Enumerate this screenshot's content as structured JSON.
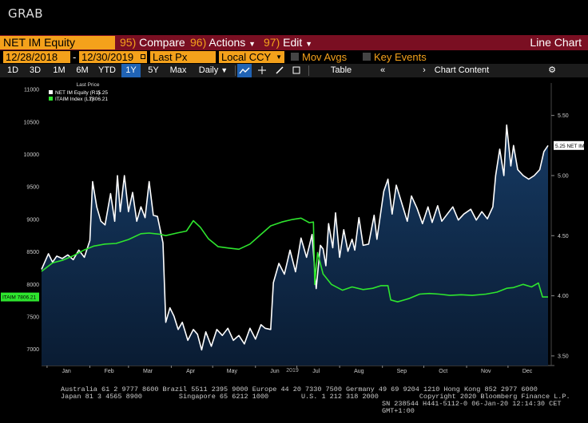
{
  "header": {
    "ticker": "GRAB",
    "security": "NET IM Equity",
    "menus": {
      "compare_num": "95)",
      "compare_label": "Compare",
      "actions_num": "96)",
      "actions_label": "Actions",
      "edit_num": "97)",
      "edit_label": "Edit"
    },
    "view_title": "Line Chart"
  },
  "controls": {
    "start_date": "12/28/2018",
    "end_date": "12/30/2019",
    "date_separator": "-",
    "price_field": "Last Px",
    "currency": "Local CCY",
    "mov_avgs": "Mov Avgs",
    "key_events": "Key Events"
  },
  "toolbar": {
    "ranges": [
      "1D",
      "3D",
      "1M",
      "6M",
      "YTD",
      "1Y",
      "5Y",
      "Max"
    ],
    "active_range": "1Y",
    "frequency": "Daily",
    "table_label": "Table",
    "chart_content_label": "Chart Content"
  },
  "legend": {
    "header": "Last Price",
    "items": [
      {
        "name": "NET IM Equity  (R1)",
        "value": "5.25",
        "color": "#ffffff"
      },
      {
        "name": "ITAIM Index  (L1)",
        "value": "7806.21",
        "color": "#2ee52e"
      }
    ]
  },
  "tags": {
    "right": "5.25 NET IM",
    "left": "ITAIM 7806.21"
  },
  "chart_data": {
    "type": "line",
    "xlabel": "2019",
    "x_ticks": [
      "Jan",
      "Feb",
      "Mar",
      "Apr",
      "May",
      "Jun",
      "Jul",
      "Aug",
      "Sep",
      "Oct",
      "Nov",
      "Dec"
    ],
    "left_axis": {
      "ticks": [
        7000,
        7500,
        8000,
        8500,
        9000,
        9500,
        10000,
        10500,
        11000
      ],
      "ylim": [
        6750,
        11100
      ]
    },
    "right_axis": {
      "ticks": [
        "3.50",
        "4.00",
        "4.50",
        "5.00",
        "5.50"
      ],
      "ylim": [
        3.42,
        5.77
      ]
    },
    "x_range": [
      "2018-12-28",
      "2019-12-30"
    ],
    "series": [
      {
        "name": "NET IM Equity",
        "axis": "right",
        "style": "area",
        "color": "#ffffff",
        "fill": "#0e2a4a",
        "points": [
          [
            "2018-12-28",
            4.22
          ],
          [
            "2019-01-02",
            4.35
          ],
          [
            "2019-01-05",
            4.28
          ],
          [
            "2019-01-08",
            4.33
          ],
          [
            "2019-01-12",
            4.31
          ],
          [
            "2019-01-16",
            4.34
          ],
          [
            "2019-01-20",
            4.3
          ],
          [
            "2019-01-24",
            4.38
          ],
          [
            "2019-01-28",
            4.32
          ],
          [
            "2019-02-01",
            4.46
          ],
          [
            "2019-02-03",
            4.95
          ],
          [
            "2019-02-06",
            4.74
          ],
          [
            "2019-02-09",
            4.62
          ],
          [
            "2019-02-12",
            4.59
          ],
          [
            "2019-02-16",
            4.85
          ],
          [
            "2019-02-19",
            4.62
          ],
          [
            "2019-02-21",
            5.0
          ],
          [
            "2019-02-23",
            4.7
          ],
          [
            "2019-02-26",
            5.0
          ],
          [
            "2019-03-01",
            4.7
          ],
          [
            "2019-03-04",
            4.86
          ],
          [
            "2019-03-07",
            4.62
          ],
          [
            "2019-03-10",
            4.74
          ],
          [
            "2019-03-13",
            4.65
          ],
          [
            "2019-03-16",
            4.95
          ],
          [
            "2019-03-19",
            4.67
          ],
          [
            "2019-03-22",
            4.66
          ],
          [
            "2019-03-26",
            4.44
          ],
          [
            "2019-03-28",
            3.78
          ],
          [
            "2019-03-31",
            3.9
          ],
          [
            "2019-04-03",
            3.83
          ],
          [
            "2019-04-06",
            3.72
          ],
          [
            "2019-04-09",
            3.78
          ],
          [
            "2019-04-13",
            3.63
          ],
          [
            "2019-04-17",
            3.72
          ],
          [
            "2019-04-20",
            3.68
          ],
          [
            "2019-04-23",
            3.55
          ],
          [
            "2019-04-26",
            3.7
          ],
          [
            "2019-04-30",
            3.58
          ],
          [
            "2019-05-04",
            3.72
          ],
          [
            "2019-05-08",
            3.67
          ],
          [
            "2019-05-12",
            3.73
          ],
          [
            "2019-05-16",
            3.63
          ],
          [
            "2019-05-20",
            3.67
          ],
          [
            "2019-05-24",
            3.6
          ],
          [
            "2019-05-28",
            3.73
          ],
          [
            "2019-06-01",
            3.64
          ],
          [
            "2019-06-05",
            3.76
          ],
          [
            "2019-06-08",
            3.73
          ],
          [
            "2019-06-12",
            3.72
          ],
          [
            "2019-06-14",
            4.11
          ],
          [
            "2019-06-18",
            4.27
          ],
          [
            "2019-06-22",
            4.18
          ],
          [
            "2019-06-26",
            4.38
          ],
          [
            "2019-06-30",
            4.2
          ],
          [
            "2019-07-04",
            4.48
          ],
          [
            "2019-07-08",
            4.32
          ],
          [
            "2019-07-12",
            4.51
          ],
          [
            "2019-07-15",
            4.06
          ],
          [
            "2019-07-18",
            4.42
          ],
          [
            "2019-07-20",
            4.39
          ],
          [
            "2019-07-22",
            4.25
          ],
          [
            "2019-07-24",
            4.6
          ],
          [
            "2019-07-27",
            4.4
          ],
          [
            "2019-07-29",
            4.69
          ],
          [
            "2019-08-01",
            4.32
          ],
          [
            "2019-08-04",
            4.55
          ],
          [
            "2019-08-07",
            4.37
          ],
          [
            "2019-08-10",
            4.47
          ],
          [
            "2019-08-12",
            4.38
          ],
          [
            "2019-08-15",
            4.65
          ],
          [
            "2019-08-18",
            4.42
          ],
          [
            "2019-08-22",
            4.43
          ],
          [
            "2019-08-26",
            4.67
          ],
          [
            "2019-08-28",
            4.47
          ],
          [
            "2019-09-02",
            4.87
          ],
          [
            "2019-09-05",
            4.97
          ],
          [
            "2019-09-08",
            4.68
          ],
          [
            "2019-09-11",
            4.92
          ],
          [
            "2019-09-15",
            4.77
          ],
          [
            "2019-09-19",
            4.62
          ],
          [
            "2019-09-22",
            4.83
          ],
          [
            "2019-09-26",
            4.73
          ],
          [
            "2019-09-30",
            4.6
          ],
          [
            "2019-10-04",
            4.74
          ],
          [
            "2019-10-07",
            4.61
          ],
          [
            "2019-10-11",
            4.75
          ],
          [
            "2019-10-14",
            4.62
          ],
          [
            "2019-10-18",
            4.68
          ],
          [
            "2019-10-22",
            4.74
          ],
          [
            "2019-10-26",
            4.63
          ],
          [
            "2019-10-30",
            4.68
          ],
          [
            "2019-11-04",
            4.72
          ],
          [
            "2019-11-08",
            4.63
          ],
          [
            "2019-11-12",
            4.7
          ],
          [
            "2019-11-16",
            4.64
          ],
          [
            "2019-11-20",
            4.74
          ],
          [
            "2019-11-22",
            5.0
          ],
          [
            "2019-11-25",
            5.22
          ],
          [
            "2019-11-28",
            5.0
          ],
          [
            "2019-11-30",
            5.42
          ],
          [
            "2019-12-03",
            5.08
          ],
          [
            "2019-12-05",
            5.25
          ],
          [
            "2019-12-08",
            5.05
          ],
          [
            "2019-12-12",
            5.0
          ],
          [
            "2019-12-16",
            4.97
          ],
          [
            "2019-12-20",
            5.0
          ],
          [
            "2019-12-24",
            5.05
          ],
          [
            "2019-12-27",
            5.2
          ],
          [
            "2019-12-30",
            5.25
          ]
        ]
      },
      {
        "name": "ITAIM Index",
        "axis": "left",
        "style": "line",
        "color": "#2ee52e",
        "points": [
          [
            "2018-12-28",
            8200
          ],
          [
            "2019-01-05",
            8330
          ],
          [
            "2019-01-12",
            8370
          ],
          [
            "2019-01-20",
            8440
          ],
          [
            "2019-01-28",
            8530
          ],
          [
            "2019-02-04",
            8590
          ],
          [
            "2019-02-12",
            8620
          ],
          [
            "2019-02-20",
            8630
          ],
          [
            "2019-03-01",
            8690
          ],
          [
            "2019-03-10",
            8780
          ],
          [
            "2019-03-16",
            8790
          ],
          [
            "2019-03-24",
            8770
          ],
          [
            "2019-03-28",
            8750
          ],
          [
            "2019-04-05",
            8790
          ],
          [
            "2019-04-12",
            8820
          ],
          [
            "2019-04-17",
            8980
          ],
          [
            "2019-04-22",
            8880
          ],
          [
            "2019-04-28",
            8700
          ],
          [
            "2019-05-05",
            8580
          ],
          [
            "2019-05-12",
            8560
          ],
          [
            "2019-05-20",
            8540
          ],
          [
            "2019-05-28",
            8620
          ],
          [
            "2019-06-05",
            8770
          ],
          [
            "2019-06-12",
            8900
          ],
          [
            "2019-06-20",
            8960
          ],
          [
            "2019-06-28",
            9000
          ],
          [
            "2019-07-04",
            9020
          ],
          [
            "2019-07-10",
            8950
          ],
          [
            "2019-07-13",
            8960
          ],
          [
            "2019-07-14",
            8000
          ],
          [
            "2019-07-16",
            8490
          ],
          [
            "2019-07-20",
            8160
          ],
          [
            "2019-07-26",
            8000
          ],
          [
            "2019-08-03",
            7910
          ],
          [
            "2019-08-10",
            7960
          ],
          [
            "2019-08-18",
            7920
          ],
          [
            "2019-08-25",
            7940
          ],
          [
            "2019-08-31",
            7980
          ],
          [
            "2019-09-05",
            7980
          ],
          [
            "2019-09-07",
            7760
          ],
          [
            "2019-09-12",
            7730
          ],
          [
            "2019-09-20",
            7780
          ],
          [
            "2019-09-28",
            7850
          ],
          [
            "2019-10-05",
            7860
          ],
          [
            "2019-10-12",
            7850
          ],
          [
            "2019-10-20",
            7830
          ],
          [
            "2019-10-28",
            7840
          ],
          [
            "2019-11-05",
            7830
          ],
          [
            "2019-11-15",
            7850
          ],
          [
            "2019-11-23",
            7880
          ],
          [
            "2019-11-30",
            7940
          ],
          [
            "2019-12-05",
            7950
          ],
          [
            "2019-12-12",
            8000
          ],
          [
            "2019-12-18",
            7960
          ],
          [
            "2019-12-23",
            8020
          ],
          [
            "2019-12-26",
            7806
          ],
          [
            "2019-12-30",
            7806
          ]
        ]
      }
    ]
  },
  "footer": {
    "line1": "Australia 61 2 9777 8600 Brazil 5511 2395 9000 Europe 44 20 7330 7500 Germany 49 69 9204 1210 Hong Kong 852 2977 6000",
    "line2": "Japan 81 3 4565 8900         Singapore 65 6212 1000        U.S. 1 212 318 2000          Copyright 2020 Bloomberg Finance L.P.",
    "line3": "SN 238544 H441-5112-0 06-Jan-20 12:14:30 CET  GMT+1:00"
  }
}
